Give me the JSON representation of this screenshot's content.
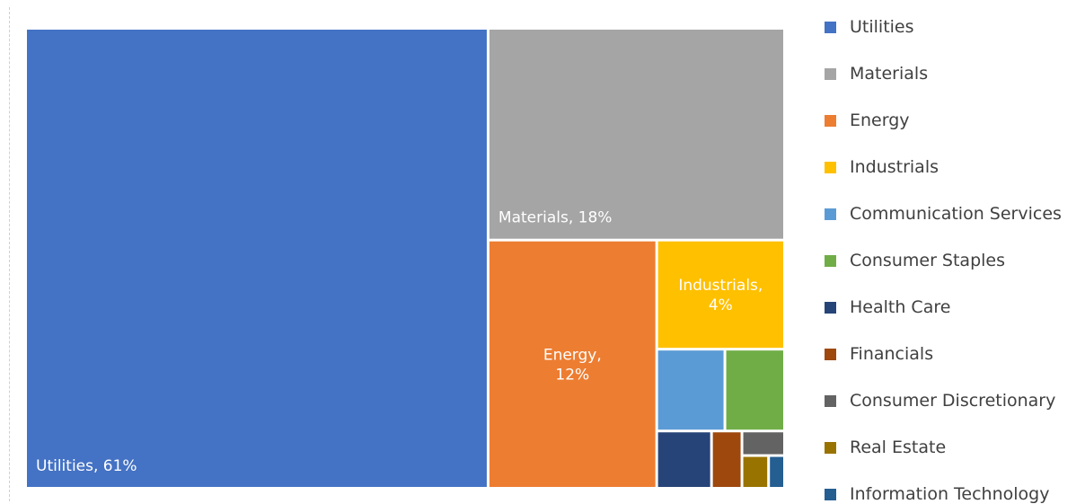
{
  "chart_data": {
    "type": "treemap",
    "title": "",
    "categories": [
      "Utilities",
      "Materials",
      "Energy",
      "Industrials",
      "Communication Services",
      "Consumer Staples",
      "Health Care",
      "Financials",
      "Consumer Discretionary",
      "Real Estate",
      "Information Technology"
    ],
    "values": [
      61,
      18,
      12,
      4,
      1.6,
      1.4,
      0.9,
      0.5,
      0.3,
      0.25,
      0.15
    ],
    "data_labels": [
      "Utilities, 61%",
      "Materials, 18%",
      "Energy, 12%",
      "Industrials, 4%",
      "",
      "",
      "",
      "",
      "",
      "",
      ""
    ],
    "unit": "%",
    "colors": [
      "#4472C4",
      "#A5A5A5",
      "#ED7D31",
      "#FFC000",
      "#5B9BD5",
      "#70AD47",
      "#264478",
      "#9E480E",
      "#636363",
      "#997300",
      "#255E91"
    ],
    "legend_position": "right",
    "label_color": "#FFFFFF"
  }
}
